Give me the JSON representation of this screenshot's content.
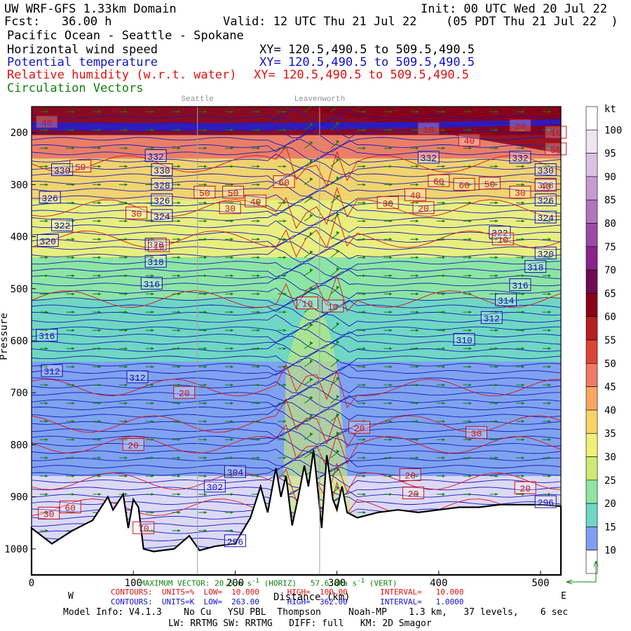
{
  "header": {
    "line1_left": "UW WRF-GFS 1.33km Domain",
    "line1_right": "Init: 00 UTC Wed 20 Jul 22",
    "line2_left": "Fcst:   36.00 h",
    "line2_mid": "Valid: 12 UTC Thu 21 Jul 22",
    "line2_right": "(05 PDT Thu 21 Jul 22  )",
    "line3": "Pacific Ocean - Seattle - Spokane",
    "field_wind": "Horizontal wind speed",
    "xy_wind": "XY= 120.5,490.5 to 509.5,490.5",
    "field_theta": "Potential temperature",
    "xy_theta": "XY= 120.5,490.5 to 509.5,490.5",
    "field_rh": "Relative humidity (w.r.t. water)",
    "xy_rh": "XY= 120.5,490.5 to 509.5,490.5",
    "field_vec": "Circulation Vectors",
    "place_seattle": "Seattle",
    "place_leavenworth": "Leavenworth"
  },
  "footer": {
    "max_vector_label": "MAXIMUM VECTOR:",
    "max_vector_value": "20.6 m s",
    "max_vector_unit": "(HORIZ)",
    "max_vector_vert_value": "57.6 dPa s",
    "max_vector_vert_unit": "(VERT)",
    "rh_contours": "CONTOURS:  UNITS=%  LOW=  10.000      HIGH=  100.00       INTERVAL=   10.000",
    "theta_contours": "CONTOURS:  UNITS=K  LOW=  263.00      HIGH=  362.00       INTERVAL=   1.0000",
    "x_title": "Distance (km)",
    "west": "W",
    "east": "E",
    "model_info_1": "Model Info: V4.1.3    No Cu   YSU PBL  Thompson     Noah-MP    1.3 km,   37 levels,    6 sec",
    "model_info_2": "LW: RRTMG SW: RRTMG   DIFF: full   KM: 2D Smagor"
  },
  "colorbar": {
    "unit": "kt",
    "levels": [
      "100",
      "95",
      "90",
      "85",
      "80",
      "75",
      "70",
      "65",
      "60",
      "55",
      "50",
      "45",
      "40",
      "35",
      "30",
      "25",
      "20",
      "15",
      "10"
    ],
    "colors": [
      "#ffffff",
      "#f1e4f2",
      "#dcc1e3",
      "#c79ad2",
      "#b274bd",
      "#9c4aa6",
      "#8a238e",
      "#6f0c53",
      "#8a0018",
      "#b72020",
      "#dc4535",
      "#f07a63",
      "#f7a862",
      "#f8d36a",
      "#eef07a",
      "#cdeb72",
      "#8ee6a2",
      "#6fd7c3",
      "#7fa0f2",
      "#ffffff"
    ]
  },
  "chart_data": {
    "type": "heatmap",
    "title": "Horizontal wind speed",
    "x_unit": "km",
    "xlabel": "Distance (km)",
    "ylabel": "Pressure",
    "xlim": [
      0,
      520
    ],
    "ylim": [
      1050,
      150
    ],
    "x_ticks": [
      "0",
      "100",
      "200",
      "300",
      "400",
      "500"
    ],
    "y_ticks": [
      "200",
      "300",
      "400",
      "500",
      "600",
      "700",
      "800",
      "900",
      "1000"
    ],
    "x_tick_values": [
      0,
      100,
      200,
      300,
      400,
      500
    ],
    "y_tick_values": [
      200,
      300,
      400,
      500,
      600,
      700,
      800,
      900,
      1000
    ],
    "markers": [
      {
        "name": "Seattle",
        "x": 163
      },
      {
        "name": "Leavenworth",
        "x": 283
      }
    ],
    "wind_speed_bands_kt": [
      {
        "p_top": 150,
        "p_bot": 205,
        "speed": 60
      },
      {
        "p_top": 205,
        "p_bot": 250,
        "speed": 45
      },
      {
        "p_top": 250,
        "p_bot": 330,
        "speed": 35
      },
      {
        "p_top": 330,
        "p_bot": 440,
        "speed": 30
      },
      {
        "p_top": 440,
        "p_bot": 520,
        "speed": 20
      },
      {
        "p_top": 520,
        "p_bot": 640,
        "speed": 15
      },
      {
        "p_top": 640,
        "p_bot": 760,
        "speed": 10
      },
      {
        "p_top": 760,
        "p_bot": 1050,
        "speed": 5
      }
    ],
    "theta_labels": [
      {
        "x": 30,
        "p": 272,
        "v": "330"
      },
      {
        "x": 18,
        "p": 325,
        "v": "326"
      },
      {
        "x": 30,
        "p": 378,
        "v": "322"
      },
      {
        "x": 16,
        "p": 408,
        "v": "320"
      },
      {
        "x": 15,
        "p": 590,
        "v": "316"
      },
      {
        "x": 20,
        "p": 658,
        "v": "312"
      },
      {
        "x": 122,
        "p": 245,
        "v": "332"
      },
      {
        "x": 128,
        "p": 272,
        "v": "330"
      },
      {
        "x": 128,
        "p": 300,
        "v": "328"
      },
      {
        "x": 128,
        "p": 330,
        "v": "326"
      },
      {
        "x": 128,
        "p": 360,
        "v": "324"
      },
      {
        "x": 122,
        "p": 415,
        "v": "320"
      },
      {
        "x": 122,
        "p": 448,
        "v": "318"
      },
      {
        "x": 118,
        "p": 490,
        "v": "316"
      },
      {
        "x": 104,
        "p": 670,
        "v": "312"
      },
      {
        "x": 200,
        "p": 852,
        "v": "304"
      },
      {
        "x": 180,
        "p": 880,
        "v": "302"
      },
      {
        "x": 200,
        "p": 985,
        "v": "296"
      },
      {
        "x": 390,
        "p": 248,
        "v": "332"
      },
      {
        "x": 480,
        "p": 248,
        "v": "332"
      },
      {
        "x": 505,
        "p": 272,
        "v": "330"
      },
      {
        "x": 505,
        "p": 300,
        "v": "328"
      },
      {
        "x": 505,
        "p": 330,
        "v": "326"
      },
      {
        "x": 505,
        "p": 363,
        "v": "324"
      },
      {
        "x": 460,
        "p": 392,
        "v": "322"
      },
      {
        "x": 505,
        "p": 432,
        "v": "320"
      },
      {
        "x": 495,
        "p": 458,
        "v": "318"
      },
      {
        "x": 480,
        "p": 493,
        "v": "316"
      },
      {
        "x": 466,
        "p": 522,
        "v": "314"
      },
      {
        "x": 452,
        "p": 556,
        "v": "312"
      },
      {
        "x": 425,
        "p": 598,
        "v": "310"
      },
      {
        "x": 505,
        "p": 910,
        "v": "296"
      }
    ],
    "rh_labels": [
      {
        "x": 15,
        "p": 180,
        "v": "40"
      },
      {
        "x": 48,
        "p": 265,
        "v": "50"
      },
      {
        "x": 170,
        "p": 315,
        "v": "50"
      },
      {
        "x": 198,
        "p": 315,
        "v": "50"
      },
      {
        "x": 220,
        "p": 332,
        "v": "40"
      },
      {
        "x": 195,
        "p": 345,
        "v": "30"
      },
      {
        "x": 103,
        "p": 355,
        "v": "30"
      },
      {
        "x": 248,
        "p": 295,
        "v": "60"
      },
      {
        "x": 350,
        "p": 335,
        "v": "30"
      },
      {
        "x": 377,
        "p": 320,
        "v": "40"
      },
      {
        "x": 385,
        "p": 345,
        "v": "20"
      },
      {
        "x": 400,
        "p": 293,
        "v": "60"
      },
      {
        "x": 425,
        "p": 300,
        "v": "60"
      },
      {
        "x": 450,
        "p": 298,
        "v": "50"
      },
      {
        "x": 480,
        "p": 315,
        "v": "30"
      },
      {
        "x": 505,
        "p": 302,
        "v": "40"
      },
      {
        "x": 463,
        "p": 405,
        "v": "10"
      },
      {
        "x": 125,
        "p": 418,
        "v": "10"
      },
      {
        "x": 271,
        "p": 528,
        "v": "10"
      },
      {
        "x": 296,
        "p": 534,
        "v": "10"
      },
      {
        "x": 150,
        "p": 700,
        "v": "20"
      },
      {
        "x": 100,
        "p": 800,
        "v": "20"
      },
      {
        "x": 322,
        "p": 767,
        "v": "20"
      },
      {
        "x": 437,
        "p": 777,
        "v": "30"
      },
      {
        "x": 372,
        "p": 858,
        "v": "20"
      },
      {
        "x": 485,
        "p": 883,
        "v": "20"
      },
      {
        "x": 375,
        "p": 893,
        "v": "20"
      },
      {
        "x": 17,
        "p": 932,
        "v": "30"
      },
      {
        "x": 38,
        "p": 920,
        "v": "60"
      },
      {
        "x": 110,
        "p": 960,
        "v": "70"
      },
      {
        "x": 515,
        "p": 200,
        "v": "10"
      },
      {
        "x": 390,
        "p": 193,
        "v": "10"
      },
      {
        "x": 480,
        "p": 187,
        "v": "20"
      },
      {
        "x": 430,
        "p": 215,
        "v": "40"
      },
      {
        "x": 515,
        "p": 232,
        "v": "50"
      }
    ]
  }
}
